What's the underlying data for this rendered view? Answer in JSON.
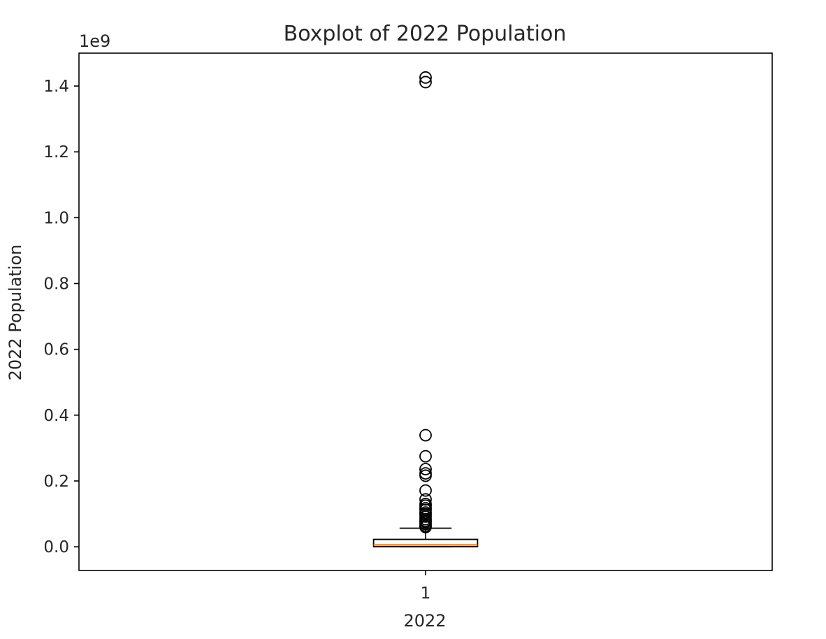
{
  "chart_data": {
    "type": "boxplot",
    "title": "Boxplot of 2022 Population",
    "xlabel": "2022",
    "ylabel": "2022 Population",
    "y_offset_text": "1e9",
    "ylim": [
      -0.072,
      1.5
    ],
    "xlim": [
      0.5,
      1.5
    ],
    "y_ticks": [
      0.0,
      0.2,
      0.4,
      0.6,
      0.8,
      1.0,
      1.2,
      1.4
    ],
    "y_tick_labels": [
      "0.0",
      "0.2",
      "0.4",
      "0.6",
      "0.8",
      "1.0",
      "1.2",
      "1.4"
    ],
    "x_ticks": [
      1
    ],
    "x_tick_labels": [
      "1"
    ],
    "grid": false,
    "box": {
      "position": 1,
      "whisker_low": 0.0,
      "q1": 0.0004,
      "median": 0.0058,
      "q3": 0.0225,
      "whisker_high": 0.0565
    },
    "outliers": [
      1.426,
      1.412,
      0.339,
      0.275,
      0.236,
      0.223,
      0.216,
      0.171,
      0.144,
      0.13,
      0.125,
      0.117,
      0.112,
      0.104,
      0.099,
      0.092,
      0.084,
      0.079,
      0.075,
      0.069,
      0.064,
      0.06
    ],
    "colors": {
      "box": "#000000",
      "median": "#ff7f0e",
      "outlier": "#000000"
    }
  }
}
